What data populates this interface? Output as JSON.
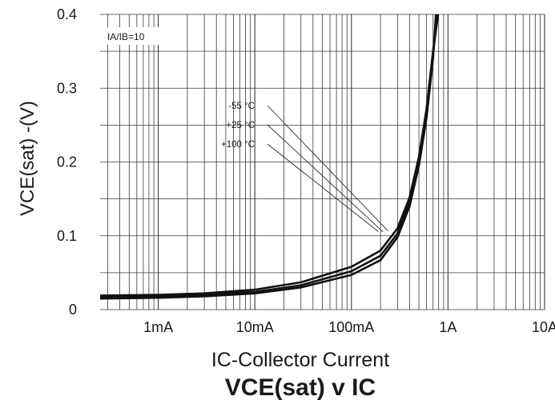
{
  "chart_data": {
    "type": "line",
    "title": "VCE(sat) v IC",
    "xlabel": "IC-Collector Current",
    "ylabel": "VCE(sat) -(V)",
    "x_scale": "log",
    "xlim": [
      0.00025,
      10
    ],
    "ylim": [
      0,
      0.4
    ],
    "x_ticks": [
      0.001,
      0.01,
      0.1,
      1,
      10
    ],
    "x_tick_labels": [
      "1mA",
      "10mA",
      "100mA",
      "1A",
      "10A"
    ],
    "y_ticks": [
      0,
      0.1,
      0.2,
      0.3,
      0.4
    ],
    "y_tick_labels": [
      "0",
      "0.1",
      "0.2",
      "0.3",
      "0.4"
    ],
    "grid": true,
    "condition": "IA/IB=10",
    "series": [
      {
        "name": "-55 °C",
        "x": [
          0.00025,
          0.001,
          0.003,
          0.01,
          0.03,
          0.1,
          0.2,
          0.3,
          0.4,
          0.5,
          0.6,
          0.7,
          0.75
        ],
        "y": [
          0.015,
          0.016,
          0.018,
          0.022,
          0.03,
          0.047,
          0.067,
          0.098,
          0.14,
          0.195,
          0.26,
          0.34,
          0.4
        ]
      },
      {
        "name": "+25 °C",
        "x": [
          0.00025,
          0.001,
          0.003,
          0.01,
          0.03,
          0.1,
          0.2,
          0.3,
          0.4,
          0.5,
          0.6,
          0.7,
          0.77
        ],
        "y": [
          0.017,
          0.018,
          0.02,
          0.024,
          0.033,
          0.052,
          0.073,
          0.103,
          0.145,
          0.2,
          0.265,
          0.345,
          0.4
        ]
      },
      {
        "name": "+100 °C",
        "x": [
          0.00025,
          0.001,
          0.003,
          0.01,
          0.03,
          0.1,
          0.2,
          0.3,
          0.4,
          0.5,
          0.6,
          0.7,
          0.79
        ],
        "y": [
          0.019,
          0.02,
          0.022,
          0.027,
          0.037,
          0.058,
          0.08,
          0.11,
          0.152,
          0.207,
          0.272,
          0.35,
          0.4
        ]
      }
    ]
  }
}
